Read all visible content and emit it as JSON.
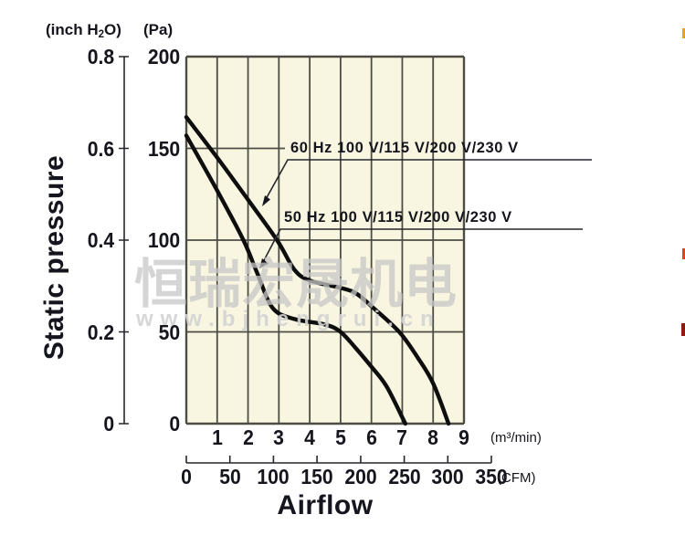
{
  "labels": {
    "y_axis_title": "Static pressure",
    "x_axis_title": "Airflow",
    "inch_pre": "(inch H",
    "inch_sub": "2",
    "inch_post": "O)",
    "pa_unit": "(Pa)",
    "m3_unit": "(m³/min)",
    "cfm_unit": "(CFM)"
  },
  "watermark": {
    "cn_text": "恒瑞宏晟机电",
    "url_text": "www.bjhengrui.cn"
  },
  "colors": {
    "plot_bg": "#f8f5e1",
    "grid": "#4e4d44",
    "curve": "#0e0e0e",
    "text": "#15151d",
    "ruler": "#26262c",
    "watermark_grey": "#c7c7c7",
    "edge_marks": [
      "#e8a020",
      "#d84818",
      "#8c1c10"
    ]
  },
  "chart_data": {
    "type": "line",
    "title": "",
    "xlabel": "Airflow",
    "ylabel": "Static pressure",
    "grid": "on",
    "x_axis_primary": {
      "unit": "m³/min",
      "ticks": [
        1,
        2,
        3,
        4,
        5,
        6,
        7,
        8,
        9
      ],
      "range": [
        0,
        9
      ]
    },
    "x_axis_secondary": {
      "unit": "CFM",
      "ticks": [
        0,
        50,
        100,
        150,
        200,
        250,
        300,
        350
      ],
      "range": [
        0,
        350
      ]
    },
    "y_axis_primary": {
      "unit": "Pa",
      "ticks": [
        200,
        150,
        100,
        50,
        0
      ],
      "range": [
        0,
        200
      ]
    },
    "y_axis_secondary": {
      "unit": "inch H2O",
      "ticks": [
        "0.8",
        "0.6",
        "0.4",
        "0.2",
        "0"
      ],
      "range": [
        0,
        0.8
      ]
    },
    "series": [
      {
        "name": "60 Hz 100 V/115 V/200 V/230 V",
        "x_unit": "m³/min",
        "y_unit": "Pa",
        "points": [
          [
            0,
            167
          ],
          [
            1,
            145
          ],
          [
            2,
            122
          ],
          [
            2.94,
            100
          ],
          [
            3.5,
            84
          ],
          [
            4,
            78
          ],
          [
            5,
            74
          ],
          [
            5.5,
            71
          ],
          [
            6,
            64
          ],
          [
            6.9,
            50
          ],
          [
            7.5,
            36
          ],
          [
            8,
            22
          ],
          [
            8.5,
            0
          ]
        ]
      },
      {
        "name": "50 Hz 100 V/115 V/200 V/230 V",
        "x_unit": "m³/min",
        "y_unit": "Pa",
        "points": [
          [
            0,
            157
          ],
          [
            1,
            127
          ],
          [
            1.85,
            100
          ],
          [
            2.3,
            82
          ],
          [
            2.8,
            63
          ],
          [
            3.5,
            57
          ],
          [
            4.5,
            54
          ],
          [
            5,
            50
          ],
          [
            5.5,
            41
          ],
          [
            6,
            31
          ],
          [
            6.5,
            20
          ],
          [
            7.1,
            0
          ]
        ]
      }
    ]
  }
}
